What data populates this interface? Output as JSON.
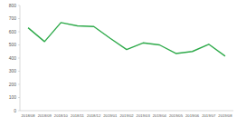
{
  "chart_data": {
    "type": "line",
    "categories": [
      "2018/08",
      "2018/09",
      "2018/10",
      "2018/11",
      "2018/12",
      "2019/01",
      "2019/02",
      "2019/03",
      "2019/04",
      "2019/05",
      "2019/06",
      "2019/07",
      "2019/08"
    ],
    "values": [
      630,
      525,
      670,
      645,
      640,
      550,
      465,
      515,
      500,
      435,
      450,
      505,
      415
    ],
    "color": "#2eaa4a",
    "ylim": [
      0,
      800
    ],
    "yticks": [
      0,
      100,
      200,
      300,
      400,
      500,
      600,
      700,
      800
    ],
    "grid": false
  }
}
